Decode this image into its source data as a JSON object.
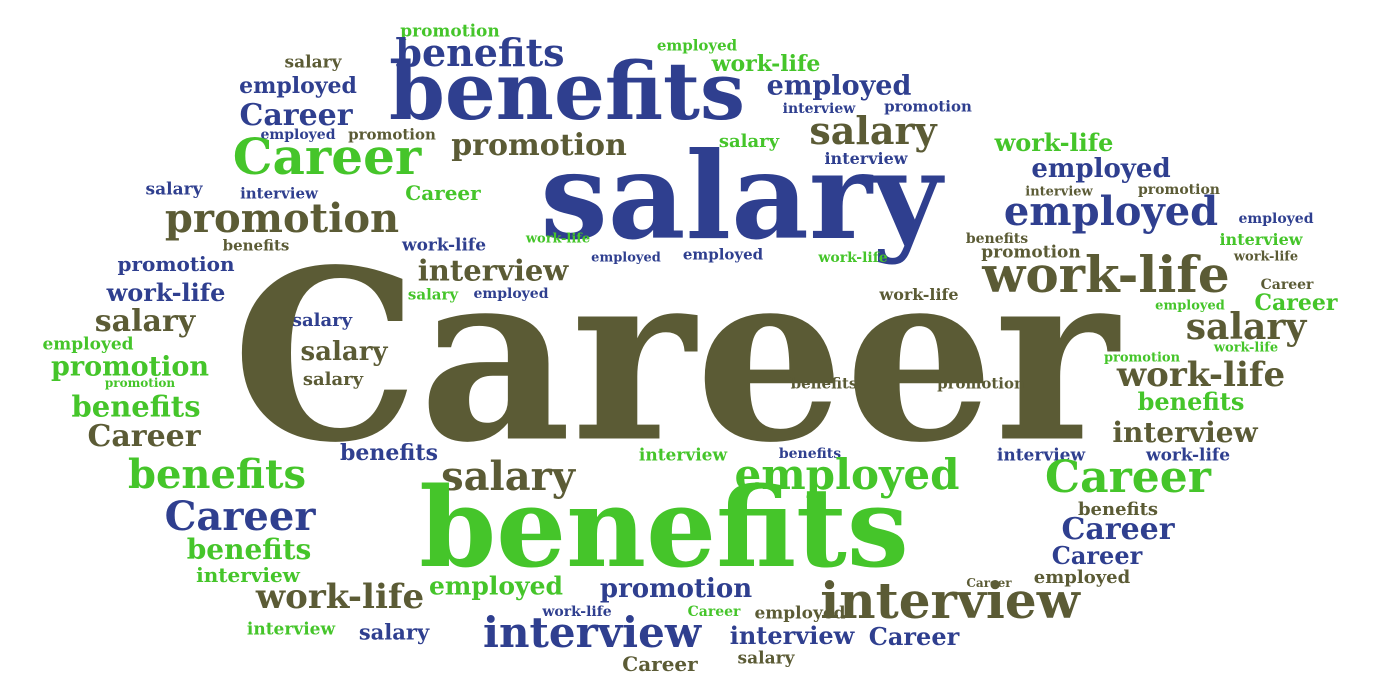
{
  "colors": {
    "navy": "#2f3f8f",
    "green": "#45c52a",
    "olive": "#5b5b35"
  },
  "words": [
    {
      "text": "promotion",
      "color": "green"
    },
    {
      "text": "benefits",
      "color": "navy"
    },
    {
      "text": "employed",
      "color": "green"
    },
    {
      "text": "salary",
      "color": "olive"
    },
    {
      "text": "work-life",
      "color": "green"
    },
    {
      "text": "employed",
      "color": "navy"
    },
    {
      "text": "benefits",
      "color": "navy"
    },
    {
      "text": "employed",
      "color": "navy"
    },
    {
      "text": "interview",
      "color": "navy"
    },
    {
      "text": "promotion",
      "color": "navy"
    },
    {
      "text": "Career",
      "color": "navy"
    },
    {
      "text": "employed",
      "color": "navy"
    },
    {
      "text": "promotion",
      "color": "olive"
    },
    {
      "text": "salary",
      "color": "olive"
    },
    {
      "text": "salary",
      "color": "green"
    },
    {
      "text": "work-life",
      "color": "green"
    },
    {
      "text": "Career",
      "color": "green"
    },
    {
      "text": "promotion",
      "color": "olive"
    },
    {
      "text": "interview",
      "color": "navy"
    },
    {
      "text": "employed",
      "color": "navy"
    },
    {
      "text": "salary",
      "color": "navy"
    },
    {
      "text": "salary",
      "color": "navy"
    },
    {
      "text": "interview",
      "color": "navy"
    },
    {
      "text": "Career",
      "color": "green"
    },
    {
      "text": "interview",
      "color": "olive"
    },
    {
      "text": "promotion",
      "color": "olive"
    },
    {
      "text": "employed",
      "color": "navy"
    },
    {
      "text": "employed",
      "color": "navy"
    },
    {
      "text": "promotion",
      "color": "olive"
    },
    {
      "text": "benefits",
      "color": "olive"
    },
    {
      "text": "work-life",
      "color": "navy"
    },
    {
      "text": "benefits",
      "color": "olive"
    },
    {
      "text": "work-life",
      "color": "green"
    },
    {
      "text": "employed",
      "color": "navy"
    },
    {
      "text": "promotion",
      "color": "olive"
    },
    {
      "text": "interview",
      "color": "green"
    },
    {
      "text": "promotion",
      "color": "navy"
    },
    {
      "text": "interview",
      "color": "olive"
    },
    {
      "text": "employed",
      "color": "navy"
    },
    {
      "text": "work-life",
      "color": "green"
    },
    {
      "text": "work-life",
      "color": "olive"
    },
    {
      "text": "work-life",
      "color": "olive"
    },
    {
      "text": "Career",
      "color": "olive"
    },
    {
      "text": "work-life",
      "color": "navy"
    },
    {
      "text": "salary",
      "color": "green"
    },
    {
      "text": "employed",
      "color": "navy"
    },
    {
      "text": "work-life",
      "color": "olive"
    },
    {
      "text": "salary",
      "color": "olive"
    },
    {
      "text": "Career",
      "color": "green"
    },
    {
      "text": "employed",
      "color": "green"
    },
    {
      "text": "salary",
      "color": "olive"
    },
    {
      "text": "salary",
      "color": "navy"
    },
    {
      "text": "salary",
      "color": "olive"
    },
    {
      "text": "employed",
      "color": "green"
    },
    {
      "text": "promotion",
      "color": "green"
    },
    {
      "text": "salary",
      "color": "olive"
    },
    {
      "text": "promotion",
      "color": "green"
    },
    {
      "text": "work-life",
      "color": "green"
    },
    {
      "text": "promotion",
      "color": "green"
    },
    {
      "text": "work-life",
      "color": "olive"
    },
    {
      "text": "Career",
      "color": "olive"
    },
    {
      "text": "benefits",
      "color": "olive"
    },
    {
      "text": "promotion",
      "color": "green"
    },
    {
      "text": "benefits",
      "color": "olive"
    },
    {
      "text": "benefits",
      "color": "olive"
    },
    {
      "text": "Career",
      "color": "navy"
    },
    {
      "text": "interview",
      "color": "navy"
    },
    {
      "text": "benefits",
      "color": "green"
    },
    {
      "text": "benefits",
      "color": "navy"
    },
    {
      "text": "interview",
      "color": "navy"
    },
    {
      "text": "interview",
      "color": "green"
    },
    {
      "text": "work-life",
      "color": "olive"
    },
    {
      "text": "benefits",
      "color": "green"
    },
    {
      "text": "salary",
      "color": "green"
    },
    {
      "text": "employed",
      "color": "green"
    },
    {
      "text": "Career",
      "color": "navy"
    },
    {
      "text": "benefits",
      "color": "olive"
    },
    {
      "text": "Career",
      "color": "navy"
    },
    {
      "text": "benefits",
      "color": "green"
    },
    {
      "text": "Career",
      "color": "navy"
    },
    {
      "text": "benefits",
      "color": "green"
    },
    {
      "text": "Career",
      "color": "green"
    },
    {
      "text": "interview",
      "color": "navy"
    },
    {
      "text": "employed",
      "color": "olive"
    },
    {
      "text": "promotion",
      "color": "olive"
    },
    {
      "text": "employed",
      "color": "olive"
    },
    {
      "text": "Career",
      "color": "olive"
    },
    {
      "text": "work-life",
      "color": "navy"
    },
    {
      "text": "interview",
      "color": "green"
    },
    {
      "text": "work-life",
      "color": "olive"
    },
    {
      "text": "Career",
      "color": "green"
    },
    {
      "text": "employed",
      "color": "navy"
    },
    {
      "text": "interview",
      "color": "navy"
    },
    {
      "text": "salary",
      "color": "navy"
    },
    {
      "text": "interview",
      "color": "navy"
    },
    {
      "text": "interview",
      "color": "olive"
    },
    {
      "text": "Career",
      "color": "olive"
    },
    {
      "text": "Career",
      "color": "olive"
    },
    {
      "text": "salary",
      "color": "navy"
    },
    {
      "text": "benefits",
      "color": "navy"
    },
    {
      "text": "employed",
      "color": "green"
    }
  ]
}
